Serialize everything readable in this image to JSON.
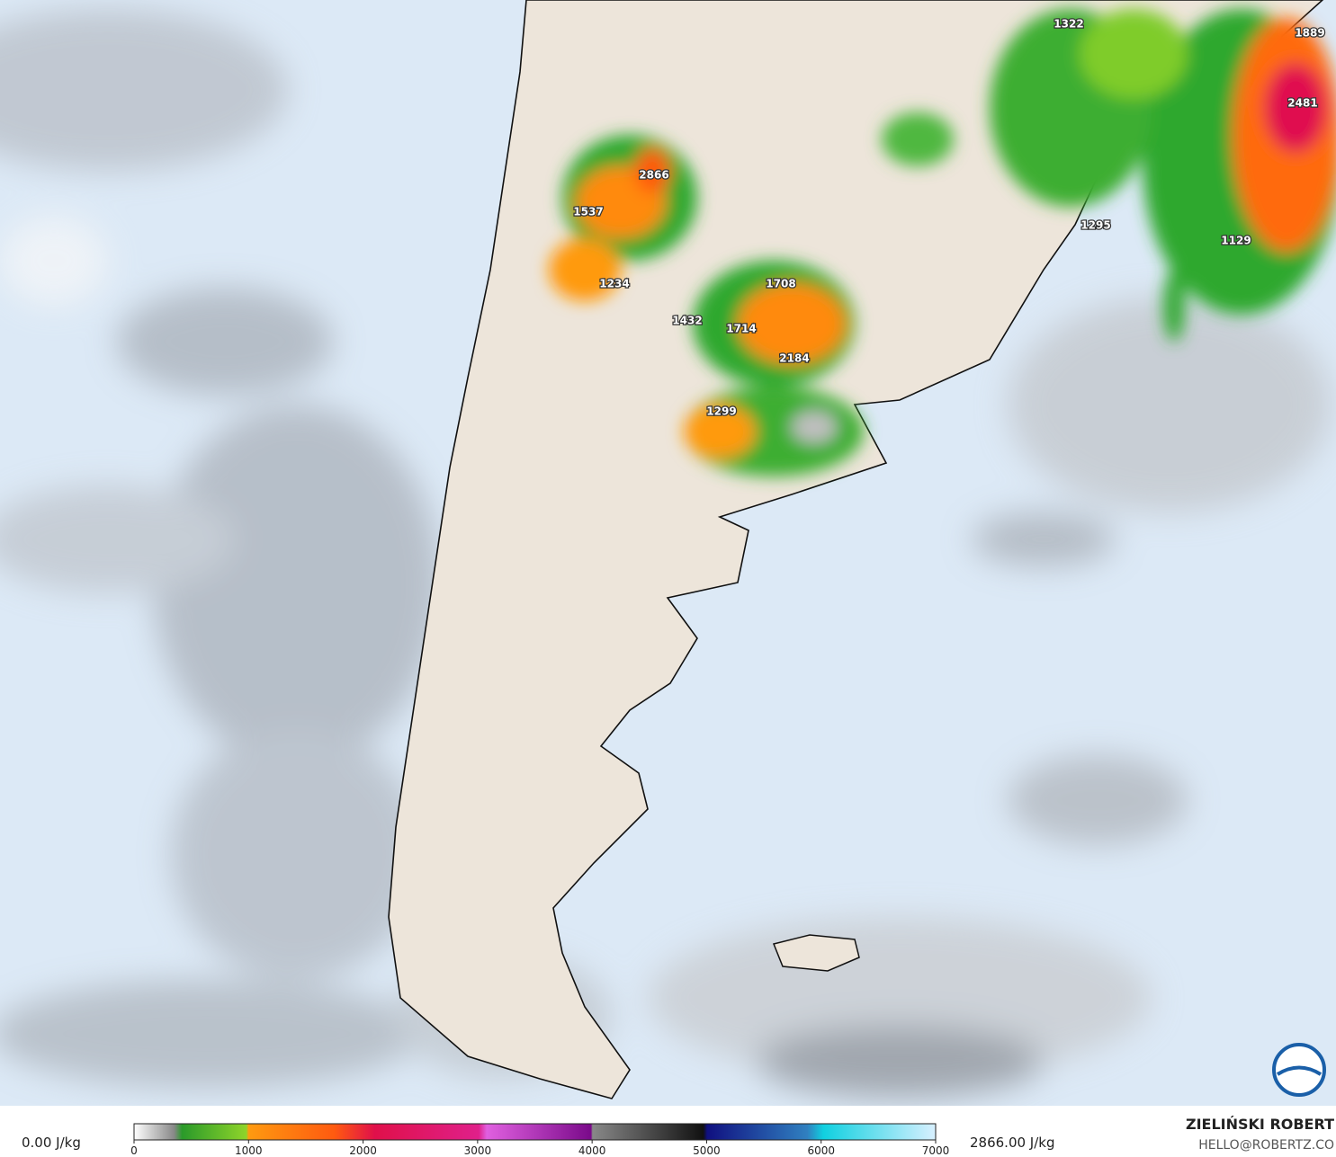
{
  "map": {
    "labels": [
      "1322",
      "1889",
      "2481",
      "2866",
      "1537",
      "1295",
      "1129",
      "1234",
      "1708",
      "1432",
      "1714",
      "2184",
      "1299"
    ]
  },
  "legend": {
    "min_label": "0.00 J/kg",
    "max_label": "2866.00 J/kg",
    "ticks": [
      0,
      1000,
      2000,
      3000,
      4000,
      5000,
      6000,
      7000
    ]
  },
  "credit": {
    "name": "ZIELIŃSKI ROBERT",
    "email": "HELLO@ROBERTZ.CO"
  }
}
